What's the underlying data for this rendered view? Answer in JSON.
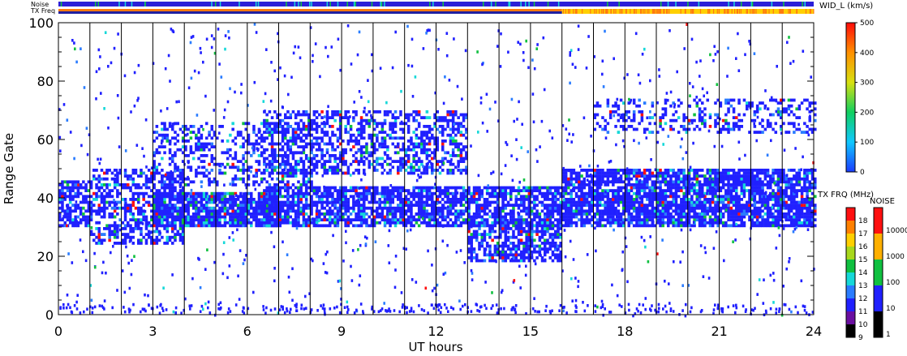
{
  "chart_data": {
    "type": "heatmap",
    "xlabel": "UT hours",
    "ylabel": "Range Gate",
    "xlim": [
      0,
      24
    ],
    "ylim": [
      0,
      100
    ],
    "x_ticks": [
      "0",
      "3",
      "6",
      "9",
      "12",
      "15",
      "18",
      "21",
      "24"
    ],
    "y_ticks": [
      "0",
      "20",
      "40",
      "60",
      "80",
      "100"
    ],
    "hour_grid_lines": true,
    "noise_bar_label": "Noise",
    "txfreq_bar_label": "TX Freq",
    "txfreq_switch_hour": 16,
    "colorbar_width": {
      "title": "WID_L (km/s)",
      "ticks": [
        "0",
        "100",
        "200",
        "300",
        "400",
        "500"
      ],
      "range": [
        0,
        500
      ]
    },
    "colorbar_txfreq": {
      "title": "TX FRQ (MHz)",
      "ticks": [
        "9",
        "10",
        "11",
        "12",
        "13",
        "14",
        "15",
        "16",
        "17",
        "18"
      ],
      "colors": [
        "#000000",
        "#6a0fa0",
        "#2020ff",
        "#2a7cff",
        "#16d8d8",
        "#10c040",
        "#a8d81c",
        "#ffd000",
        "#ff8000",
        "#ff1010"
      ]
    },
    "colorbar_noise": {
      "title": "NOISE",
      "ticks": [
        "1",
        "10",
        "100",
        "1000",
        "10000"
      ],
      "colors": [
        "#000000",
        "#2020ff",
        "#10c040",
        "#ffb000",
        "#ff1010"
      ]
    },
    "scatter_bands": [
      {
        "x_start": 0,
        "x_end": 1,
        "y_low": 30,
        "y_high": 46,
        "density": 0.7
      },
      {
        "x_start": 1,
        "x_end": 4,
        "y_low": 24,
        "y_high": 50,
        "density": 0.55
      },
      {
        "x_start": 3,
        "x_end": 7,
        "y_low": 30,
        "y_high": 42,
        "density": 0.85
      },
      {
        "x_start": 3,
        "x_end": 8,
        "y_low": 44,
        "y_high": 66,
        "density": 0.35
      },
      {
        "x_start": 6.5,
        "x_end": 16,
        "y_low": 30,
        "y_high": 44,
        "density": 0.75
      },
      {
        "x_start": 6.5,
        "x_end": 13,
        "y_low": 48,
        "y_high": 70,
        "density": 0.5
      },
      {
        "x_start": 13,
        "x_end": 16,
        "y_low": 18,
        "y_high": 32,
        "density": 0.65
      },
      {
        "x_start": 16,
        "x_end": 24,
        "y_low": 30,
        "y_high": 50,
        "density": 0.8
      },
      {
        "x_start": 17,
        "x_end": 24,
        "y_low": 62,
        "y_high": 74,
        "density": 0.3
      }
    ]
  }
}
